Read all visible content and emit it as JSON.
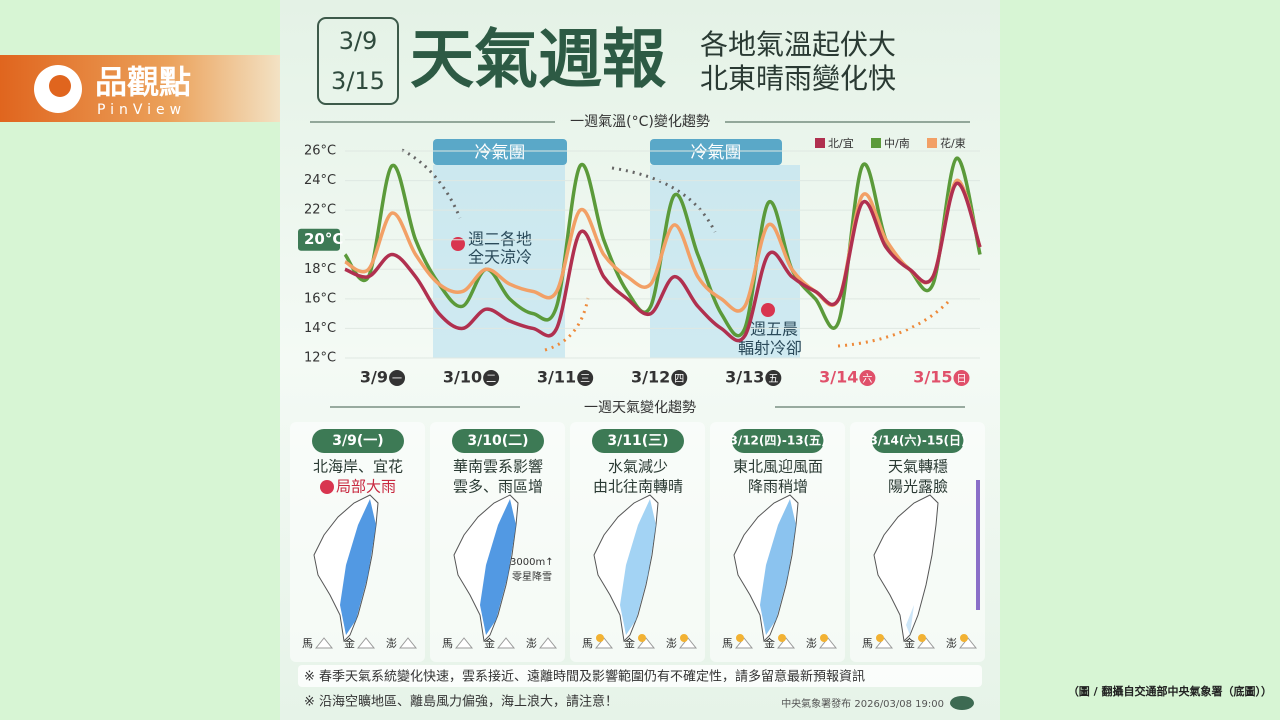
{
  "logo": {
    "name": "品觀點",
    "latin": "PinView"
  },
  "header": {
    "date_start": "3/9",
    "date_end": "3/15",
    "title": "天氣週報",
    "subtitle_1": "各地氣溫起伏大",
    "subtitle_2": "北東晴雨變化快"
  },
  "chart_data": {
    "type": "line",
    "title": "一週氣溫(°C)變化趨勢",
    "categories": [
      null,
      null,
      "3/9",
      null,
      null,
      null,
      "3/10",
      null,
      null,
      null,
      "3/11",
      null,
      null,
      null,
      "3/12",
      null,
      null,
      null,
      "3/13",
      null,
      null,
      null,
      "3/14",
      null,
      null,
      null,
      "3/15",
      null
    ],
    "weekdays": [
      null,
      null,
      "一",
      null,
      null,
      null,
      "二",
      null,
      null,
      null,
      "三",
      null,
      null,
      null,
      "四",
      null,
      null,
      null,
      "五",
      null,
      null,
      null,
      "六",
      null,
      null,
      null,
      "日",
      null
    ],
    "category_colors": [
      null,
      null,
      "#333333",
      null,
      null,
      null,
      "#333333",
      null,
      null,
      null,
      "#333333",
      null,
      null,
      null,
      "#333333",
      null,
      null,
      null,
      "#333333",
      null,
      null,
      null,
      "#e0506a",
      null,
      null,
      null,
      "#e0506a",
      null
    ],
    "series": [
      {
        "name": "北/宜",
        "color": "#b0304f",
        "values": [
          18,
          17.5,
          19,
          17.5,
          15,
          14,
          15.3,
          14.5,
          14,
          14,
          20.5,
          17.5,
          16,
          15,
          17.5,
          15.5,
          14,
          13.5,
          19,
          17.5,
          16.5,
          16,
          22.5,
          19.5,
          18,
          17.5,
          23.8,
          19.5
        ]
      },
      {
        "name": "中/南",
        "color": "#5b9a3a",
        "values": [
          19,
          17.5,
          25,
          20,
          17,
          15.5,
          18,
          16,
          15,
          15.5,
          25,
          20,
          16.5,
          15.5,
          23,
          19,
          15,
          14,
          22.5,
          18,
          16,
          14.5,
          25,
          20,
          18,
          17,
          25.5,
          19
        ]
      },
      {
        "name": "花/東",
        "color": "#f2a066",
        "values": [
          18.5,
          18,
          21.8,
          19,
          17,
          16.5,
          18,
          17,
          16.5,
          16.5,
          22,
          19,
          17.5,
          17,
          21,
          17.5,
          16,
          15.5,
          21,
          18,
          16.5,
          16,
          23,
          20,
          18,
          17.5,
          24,
          19.5
        ]
      }
    ],
    "ylim": [
      12,
      26
    ],
    "yticks": [
      {
        "value": 12,
        "label": "12°C"
      },
      {
        "value": 14,
        "label": "14°C"
      },
      {
        "value": 16,
        "label": "16°C"
      },
      {
        "value": 18,
        "label": "18°C"
      },
      {
        "value": 20,
        "label": "20°C",
        "highlight": true
      },
      {
        "value": 22,
        "label": "22°C"
      },
      {
        "value": 24,
        "label": "24°C"
      },
      {
        "value": 26,
        "label": "26°C"
      }
    ],
    "legend": "top-right",
    "cold_air_label": "冷氣團",
    "annotations": [
      {
        "line1": "週二各地",
        "line2": "全天涼冷"
      },
      {
        "line1": "週五晨",
        "line2": "輻射冷卻"
      }
    ]
  },
  "weekly": {
    "title": "一週天氣變化趨勢",
    "islands": [
      "馬",
      "金",
      "澎"
    ],
    "panels": [
      {
        "date": "3/9(一)",
        "line1": "北海岸、宜花",
        "line2": "局部大雨"
      },
      {
        "date": "3/10(二)",
        "line1": "華南雲系影響",
        "line2": "雲多、雨區增",
        "note1": "3000m↑",
        "note2": "零星降雪"
      },
      {
        "date": "3/11(三)",
        "line1": "水氣減少",
        "line2": "由北往南轉晴"
      },
      {
        "date": "3/12(四)-13(五)",
        "line1": "東北風迎風面",
        "line2": "降雨稍增"
      },
      {
        "date": "3/14(六)-15(日)",
        "line1": "天氣轉穩",
        "line2": "陽光露臉"
      }
    ]
  },
  "notes": [
    "※ 春季天氣系統變化快速，雲系接近、遠離時間及影響範圍仍有不確定性，請多留意最新預報資訊",
    "※ 沿海空曠地區、離島風力偏強，海上浪大，請注意！"
  ],
  "publisher": "中央氣象署發布 2026/03/08 19:00",
  "caption": "（圖 / 翻攝自交通部中央氣象署（底圖））"
}
